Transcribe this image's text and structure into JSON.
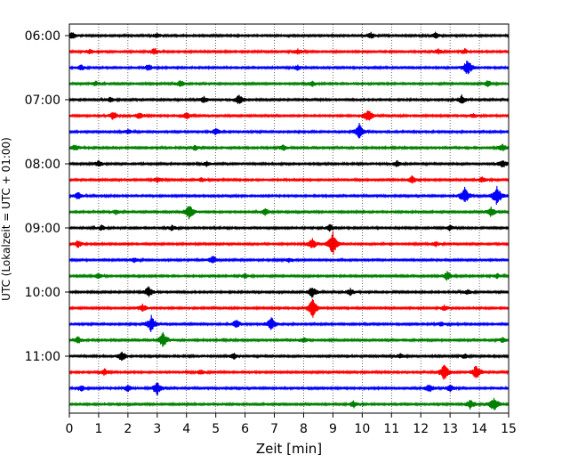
{
  "chart_data": {
    "type": "line",
    "title": "",
    "xlabel": "Zeit  [min]",
    "ylabel": "UTC (Lokalzeit = UTC + 01:00)",
    "xlim": [
      0,
      15
    ],
    "x_ticks": [
      0,
      1,
      2,
      3,
      4,
      5,
      6,
      7,
      8,
      9,
      10,
      11,
      12,
      13,
      14,
      15
    ],
    "y_tick_labels": [
      "06:00",
      "07:00",
      "08:00",
      "09:00",
      "10:00",
      "11:00"
    ],
    "traces_per_hour": 4,
    "trace_minutes": 15,
    "start_time": "06:00",
    "grid": "vertical-dotted",
    "colors": [
      "#000000",
      "#ff0000",
      "#0000ff",
      "#008000"
    ],
    "traces": [
      {
        "start": "06:00",
        "color": "#000000",
        "events": [
          [
            0.1,
            0.4
          ],
          [
            3.0,
            0.3
          ],
          [
            10.3,
            0.4
          ],
          [
            12.5,
            0.4
          ]
        ]
      },
      {
        "start": "06:15",
        "color": "#ff0000",
        "events": [
          [
            0.7,
            0.3
          ],
          [
            2.9,
            0.4
          ],
          [
            7.8,
            0.3
          ],
          [
            12.6,
            0.3
          ],
          [
            13.5,
            0.3
          ]
        ]
      },
      {
        "start": "06:30",
        "color": "#0000ff",
        "events": [
          [
            0.4,
            0.3
          ],
          [
            2.7,
            0.4
          ],
          [
            7.8,
            0.3
          ],
          [
            13.6,
            1.0
          ]
        ]
      },
      {
        "start": "06:45",
        "color": "#008000",
        "events": [
          [
            0.9,
            0.3
          ],
          [
            3.8,
            0.4
          ],
          [
            8.3,
            0.3
          ],
          [
            14.3,
            0.4
          ]
        ]
      },
      {
        "start": "07:00",
        "color": "#000000",
        "events": [
          [
            1.4,
            0.3
          ],
          [
            4.6,
            0.4
          ],
          [
            5.8,
            0.6
          ],
          [
            13.4,
            0.5
          ]
        ]
      },
      {
        "start": "07:15",
        "color": "#ff0000",
        "events": [
          [
            1.5,
            0.5
          ],
          [
            2.4,
            0.4
          ],
          [
            4.0,
            0.4
          ],
          [
            10.2,
            0.8
          ],
          [
            13.8,
            0.3
          ]
        ]
      },
      {
        "start": "07:30",
        "color": "#0000ff",
        "events": [
          [
            2.0,
            0.3
          ],
          [
            5.0,
            0.4
          ],
          [
            9.9,
            0.9
          ]
        ]
      },
      {
        "start": "07:45",
        "color": "#008000",
        "events": [
          [
            0.2,
            0.4
          ],
          [
            4.3,
            0.3
          ],
          [
            7.3,
            0.3
          ],
          [
            14.8,
            0.4
          ]
        ]
      },
      {
        "start": "08:00",
        "color": "#000000",
        "events": [
          [
            1.0,
            0.4
          ],
          [
            4.7,
            0.3
          ],
          [
            11.2,
            0.4
          ],
          [
            14.8,
            0.5
          ]
        ]
      },
      {
        "start": "08:15",
        "color": "#ff0000",
        "events": [
          [
            3.0,
            0.3
          ],
          [
            4.5,
            0.3
          ],
          [
            11.7,
            0.5
          ],
          [
            14.1,
            0.3
          ]
        ]
      },
      {
        "start": "08:30",
        "color": "#0000ff",
        "events": [
          [
            0.3,
            0.4
          ],
          [
            13.5,
            1.1
          ],
          [
            14.6,
            1.2
          ]
        ]
      },
      {
        "start": "08:45",
        "color": "#008000",
        "events": [
          [
            1.6,
            0.3
          ],
          [
            4.1,
            0.9
          ],
          [
            6.7,
            0.4
          ],
          [
            14.4,
            0.6
          ]
        ]
      },
      {
        "start": "09:00",
        "color": "#000000",
        "events": [
          [
            1.1,
            0.3
          ],
          [
            3.5,
            0.3
          ],
          [
            8.9,
            0.4
          ],
          [
            13.0,
            0.3
          ]
        ]
      },
      {
        "start": "09:15",
        "color": "#ff0000",
        "events": [
          [
            0.3,
            0.4
          ],
          [
            8.3,
            0.6
          ],
          [
            9.0,
            1.4
          ],
          [
            12.5,
            0.3
          ]
        ]
      },
      {
        "start": "09:30",
        "color": "#0000ff",
        "events": [
          [
            2.2,
            0.3
          ],
          [
            4.9,
            0.5
          ],
          [
            7.5,
            0.3
          ]
        ]
      },
      {
        "start": "09:45",
        "color": "#008000",
        "events": [
          [
            1.0,
            0.3
          ],
          [
            6.0,
            0.3
          ],
          [
            12.9,
            0.5
          ],
          [
            14.6,
            0.3
          ]
        ]
      },
      {
        "start": "10:00",
        "color": "#000000",
        "events": [
          [
            2.7,
            0.6
          ],
          [
            8.3,
            0.7
          ],
          [
            9.6,
            0.4
          ],
          [
            13.6,
            0.3
          ]
        ]
      },
      {
        "start": "10:15",
        "color": "#ff0000",
        "events": [
          [
            2.5,
            0.5
          ],
          [
            8.3,
            1.2
          ],
          [
            12.8,
            0.3
          ]
        ]
      },
      {
        "start": "10:30",
        "color": "#0000ff",
        "events": [
          [
            2.8,
            1.0
          ],
          [
            5.7,
            0.5
          ],
          [
            6.9,
            0.8
          ],
          [
            12.7,
            0.3
          ]
        ]
      },
      {
        "start": "10:45",
        "color": "#008000",
        "events": [
          [
            0.3,
            0.4
          ],
          [
            3.2,
            0.9
          ],
          [
            8.0,
            0.3
          ],
          [
            14.8,
            0.3
          ]
        ]
      },
      {
        "start": "11:00",
        "color": "#000000",
        "events": [
          [
            1.8,
            0.6
          ],
          [
            5.6,
            0.4
          ],
          [
            11.3,
            0.3
          ],
          [
            13.5,
            0.3
          ]
        ]
      },
      {
        "start": "11:15",
        "color": "#ff0000",
        "events": [
          [
            1.2,
            0.4
          ],
          [
            4.5,
            0.3
          ],
          [
            12.8,
            1.0
          ],
          [
            13.9,
            0.9
          ]
        ]
      },
      {
        "start": "11:30",
        "color": "#0000ff",
        "events": [
          [
            0.4,
            0.4
          ],
          [
            2.0,
            0.4
          ],
          [
            3.0,
            0.8
          ],
          [
            12.3,
            0.5
          ],
          [
            13.0,
            0.4
          ]
        ]
      },
      {
        "start": "11:45",
        "color": "#008000",
        "events": [
          [
            9.7,
            0.4
          ],
          [
            13.7,
            0.6
          ],
          [
            14.5,
            0.9
          ]
        ]
      }
    ]
  }
}
